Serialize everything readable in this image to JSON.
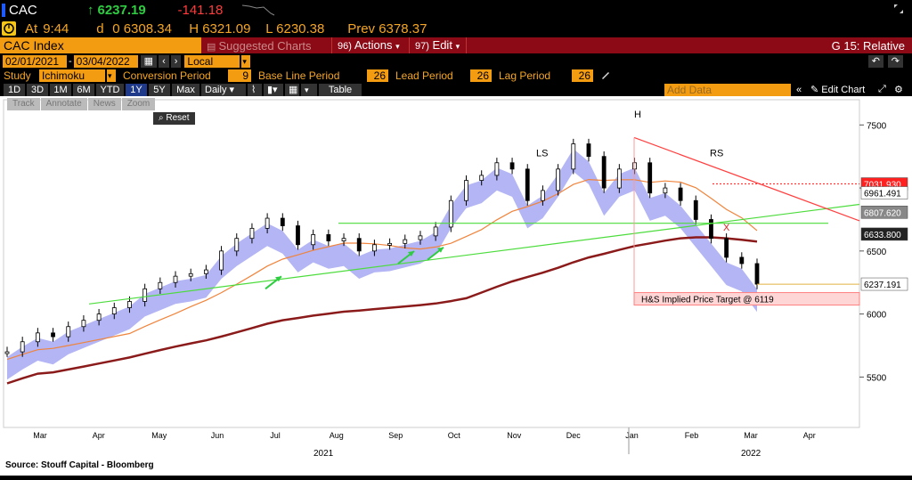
{
  "header": {
    "ticker": "CAC",
    "arrow": "↑",
    "last": "6237.19",
    "change": "-141.18"
  },
  "quote": {
    "at_label": "At",
    "time": "9:44",
    "demand": "d",
    "open": "0 6308.34",
    "high": "H 6321.09",
    "low": "L 6230.38",
    "prev": "Prev 6378.37"
  },
  "toolbar": {
    "index_name": "CAC Index",
    "suggested": "Suggested Charts",
    "actions_num": "96)",
    "actions": "Actions",
    "edit_num": "97)",
    "edit": "Edit",
    "right": "G 15: Relative"
  },
  "range": {
    "start": "02/01/2021",
    "end": "03/04/2022",
    "currency": "Local CCY"
  },
  "study": {
    "label": "Study",
    "name": "Ichimoku",
    "conv_label": "Conversion Period",
    "conv_val": "9",
    "base_label": "Base Line Period",
    "base_val": "26",
    "lead_label": "Lead Period",
    "lead_val": "26",
    "lag_label": "Lag Period",
    "lag_val": "26"
  },
  "periods": [
    "1D",
    "3D",
    "1M",
    "6M",
    "YTD",
    "1Y",
    "5Y",
    "Max"
  ],
  "period_selected": "1Y",
  "freq": "Daily",
  "table": "Table",
  "add_data_placeholder": "Add Data",
  "edit_chart": "Edit Chart",
  "tools": [
    "Track",
    "Annotate",
    "News",
    "Zoom"
  ],
  "reset": "Reset",
  "chart_data": {
    "type": "line",
    "title": "",
    "ylim": [
      5100,
      7700
    ],
    "yticks": [
      "7500",
      "7000",
      "6500",
      "6000",
      "5500"
    ],
    "months": [
      "Mar",
      "Apr",
      "May",
      "Jun",
      "Jul",
      "Aug",
      "Sep",
      "Oct",
      "Nov",
      "Dec",
      "Jan",
      "Feb",
      "Mar",
      "Apr"
    ],
    "years": [
      "2021",
      "2022"
    ],
    "price_labels": [
      {
        "v": "7031.930",
        "color": "#ff2020"
      },
      {
        "v": "6961.491",
        "color": "#ffffff"
      },
      {
        "v": "6807.620",
        "color": "#888888"
      },
      {
        "v": "6633.800",
        "color": "#222222"
      },
      {
        "v": "6237.191",
        "color": "#ffffff"
      }
    ],
    "annotations": [
      "H",
      "LS",
      "RS",
      "X"
    ],
    "target_label": "H&S Implied Price Target @ 6119",
    "series": [
      {
        "values": [
          5700,
          5780,
          5850,
          5820,
          5900,
          5950,
          6000,
          6050,
          6100,
          6200,
          6250,
          6300,
          6320,
          6350,
          6500,
          6600,
          6680,
          6760,
          6700,
          6550,
          6630,
          6580,
          6600,
          6500,
          6550,
          6560,
          6590,
          6620,
          6690,
          6900,
          7060,
          7100,
          7200,
          7150,
          6900,
          6980,
          7150,
          7350,
          7250,
          7000,
          7150,
          7200,
          6960,
          7000,
          6900,
          6750,
          6600,
          6450,
          6400,
          6237
        ]
      }
    ]
  },
  "source": "Source:  Stouff Capital - Bloomberg"
}
